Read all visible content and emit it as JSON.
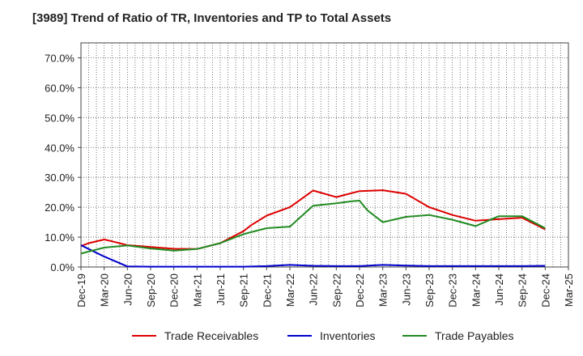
{
  "chart_data": {
    "type": "line",
    "title": "[3989]  Trend of Ratio of TR, Inventories and TP to Total Assets",
    "xlabel": "",
    "ylabel": "",
    "ylim": [
      0,
      75
    ],
    "y_ticks": [
      "0.0%",
      "10.0%",
      "20.0%",
      "30.0%",
      "40.0%",
      "50.0%",
      "60.0%",
      "70.0%"
    ],
    "x_ticks": [
      "Dec-19",
      "Mar-20",
      "Jun-20",
      "Sep-20",
      "Dec-20",
      "Mar-21",
      "Jun-21",
      "Sep-21",
      "Dec-21",
      "Mar-22",
      "Jun-22",
      "Sep-22",
      "Dec-22",
      "Mar-23",
      "Jun-23",
      "Sep-23",
      "Dec-23",
      "Mar-24",
      "Jun-24",
      "Sep-24",
      "Dec-24",
      "Mar-25"
    ],
    "x": [
      "Dec-19",
      "Mar-20",
      "Jun-20",
      "Sep-20",
      "Dec-20",
      "Mar-21",
      "Jun-21",
      "Sep-21",
      "Dec-21",
      "Mar-22",
      "Jun-22",
      "Sep-22",
      "Dec-22",
      "Mar-23",
      "Jun-23",
      "Sep-23",
      "Dec-23",
      "Mar-24",
      "Jun-24",
      "Sep-24",
      "Dec-24"
    ],
    "grid": true,
    "legend_position": "bottom",
    "series": [
      {
        "name": "Trade Receivables",
        "color": "#dd0000",
        "points": [
          [
            "Dec-19",
            7.0
          ],
          [
            "Jan-20",
            8.0
          ],
          [
            "Mar-20",
            9.2
          ],
          [
            "Apr-20",
            8.6
          ],
          [
            "Jun-20",
            7.3
          ],
          [
            "Sep-20",
            6.7
          ],
          [
            "Dec-20",
            6.1
          ],
          [
            "Mar-21",
            6.0
          ],
          [
            "Jun-21",
            8.0
          ],
          [
            "Sep-21",
            12.0
          ],
          [
            "Oct-21",
            14.0
          ],
          [
            "Dec-21",
            17.2
          ],
          [
            "Mar-22",
            20.0
          ],
          [
            "Jun-22",
            25.6
          ],
          [
            "Sep-22",
            23.4
          ],
          [
            "Dec-22",
            25.4
          ],
          [
            "Mar-23",
            25.7
          ],
          [
            "Jun-23",
            24.5
          ],
          [
            "Sep-23",
            20.0
          ],
          [
            "Dec-23",
            17.4
          ],
          [
            "Mar-24",
            15.5
          ],
          [
            "Jun-24",
            16.0
          ],
          [
            "Sep-24",
            16.5
          ],
          [
            "Dec-24",
            12.6
          ]
        ]
      },
      {
        "name": "Inventories",
        "color": "#0000cc",
        "points": [
          [
            "Dec-19",
            7.3
          ],
          [
            "Jan-20",
            6.0
          ],
          [
            "Mar-20",
            3.5
          ],
          [
            "Jun-20",
            0.2
          ],
          [
            "Sep-20",
            0.1
          ],
          [
            "Dec-20",
            0.1
          ],
          [
            "Mar-21",
            0.1
          ],
          [
            "Jun-21",
            0.1
          ],
          [
            "Sep-21",
            0.1
          ],
          [
            "Dec-21",
            0.3
          ],
          [
            "Mar-22",
            0.7
          ],
          [
            "Jun-22",
            0.4
          ],
          [
            "Sep-22",
            0.3
          ],
          [
            "Dec-22",
            0.3
          ],
          [
            "Mar-23",
            0.7
          ],
          [
            "Jun-23",
            0.5
          ],
          [
            "Sep-23",
            0.3
          ],
          [
            "Dec-23",
            0.3
          ],
          [
            "Mar-24",
            0.3
          ],
          [
            "Jun-24",
            0.3
          ],
          [
            "Sep-24",
            0.3
          ],
          [
            "Dec-24",
            0.4
          ]
        ]
      },
      {
        "name": "Trade Payables",
        "color": "#228b22",
        "points": [
          [
            "Dec-19",
            4.5
          ],
          [
            "Mar-20",
            6.5
          ],
          [
            "Jun-20",
            7.2
          ],
          [
            "Sep-20",
            6.2
          ],
          [
            "Dec-20",
            5.5
          ],
          [
            "Mar-21",
            6.0
          ],
          [
            "Jun-21",
            8.0
          ],
          [
            "Sep-21",
            11.0
          ],
          [
            "Dec-21",
            13.0
          ],
          [
            "Mar-22",
            13.5
          ],
          [
            "Jun-22",
            20.5
          ],
          [
            "Sep-22",
            21.3
          ],
          [
            "Nov-22",
            22.0
          ],
          [
            "Dec-22",
            22.2
          ],
          [
            "Jan-23",
            19.0
          ],
          [
            "Mar-23",
            15.0
          ],
          [
            "Jun-23",
            16.8
          ],
          [
            "Sep-23",
            17.4
          ],
          [
            "Dec-23",
            15.8
          ],
          [
            "Mar-24",
            13.7
          ],
          [
            "Jun-24",
            17.0
          ],
          [
            "Sep-24",
            17.0
          ],
          [
            "Dec-24",
            13.0
          ]
        ]
      }
    ]
  }
}
